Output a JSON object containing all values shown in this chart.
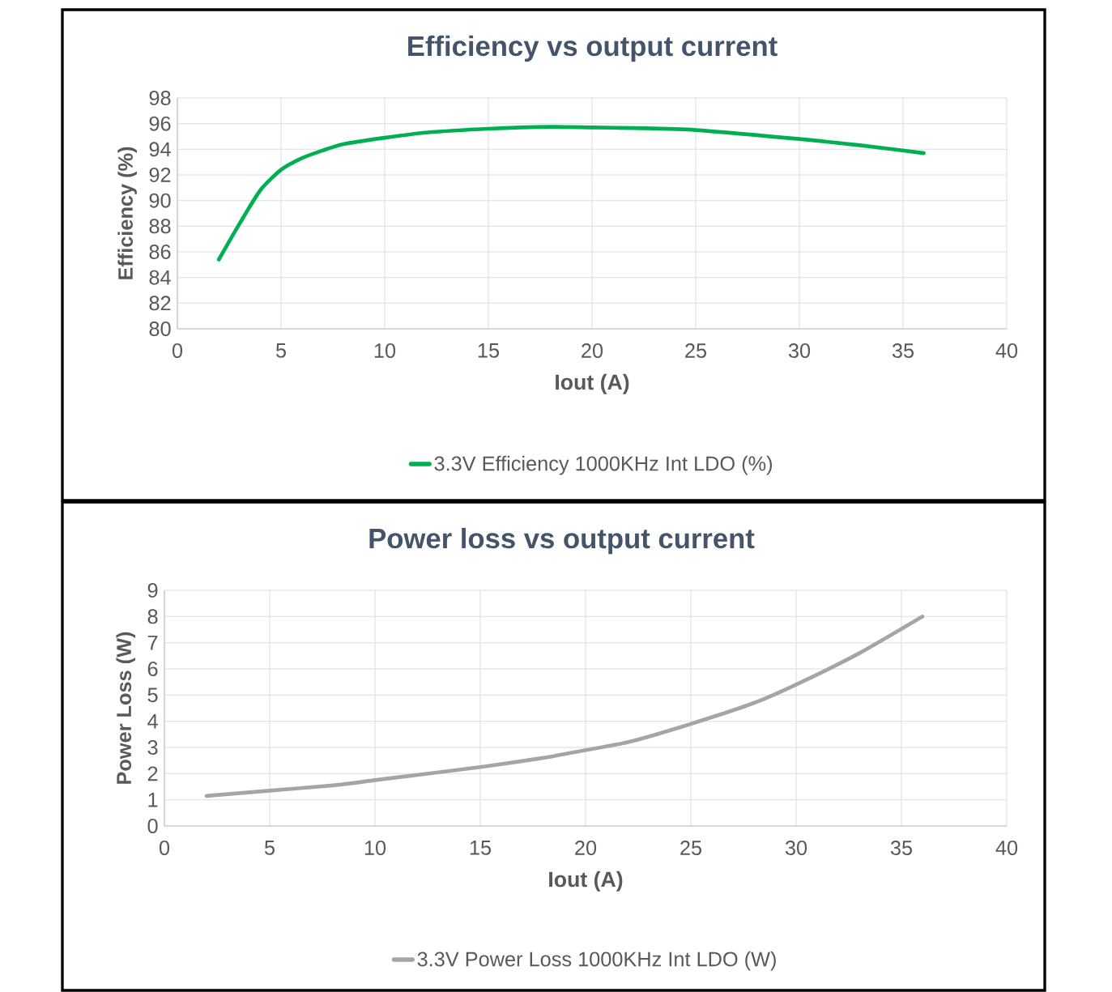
{
  "chart_data": [
    {
      "type": "line",
      "title": "Efficiency vs output current",
      "xlabel": "Iout (A)",
      "ylabel": "Efficiency (%)",
      "xlim": [
        0,
        40
      ],
      "xticks": [
        0,
        5,
        10,
        15,
        20,
        25,
        30,
        35,
        40
      ],
      "ylim": [
        80,
        98
      ],
      "yticks": [
        80,
        82,
        84,
        86,
        88,
        90,
        92,
        94,
        96,
        98
      ],
      "grid": true,
      "legend": "bottom",
      "marker": "none",
      "line_style": "solid",
      "series": [
        {
          "name": "3.3V Efficiency 1000KHz Int LDO (%)",
          "color": "#00b050",
          "x": [
            2,
            3,
            4,
            5,
            6,
            7,
            8,
            10,
            12,
            15,
            18,
            20,
            22,
            25,
            30,
            33,
            36
          ],
          "values": [
            85.4,
            88.2,
            90.8,
            92.4,
            93.3,
            93.9,
            94.4,
            94.9,
            95.3,
            95.6,
            95.75,
            95.7,
            95.65,
            95.5,
            94.8,
            94.3,
            93.7
          ]
        }
      ]
    },
    {
      "type": "line",
      "title": "Power loss vs output current",
      "xlabel": "Iout (A)",
      "ylabel": "Power Loss (W)",
      "xlim": [
        0,
        40
      ],
      "xticks": [
        0,
        5,
        10,
        15,
        20,
        25,
        30,
        35,
        40
      ],
      "ylim": [
        0,
        9
      ],
      "yticks": [
        0,
        1,
        2,
        3,
        4,
        5,
        6,
        7,
        8,
        9
      ],
      "grid": true,
      "legend": "bottom",
      "marker": "none",
      "line_style": "solid",
      "series": [
        {
          "name": "3.3V Power Loss  1000KHz Int LDO (W)",
          "color": "#a5a5a5",
          "x": [
            2,
            5,
            8,
            10,
            12,
            15,
            18,
            20,
            22,
            25,
            28,
            30,
            33,
            36
          ],
          "values": [
            1.15,
            1.35,
            1.55,
            1.75,
            1.95,
            2.25,
            2.6,
            2.9,
            3.2,
            3.9,
            4.7,
            5.4,
            6.6,
            8.0
          ]
        }
      ]
    }
  ]
}
